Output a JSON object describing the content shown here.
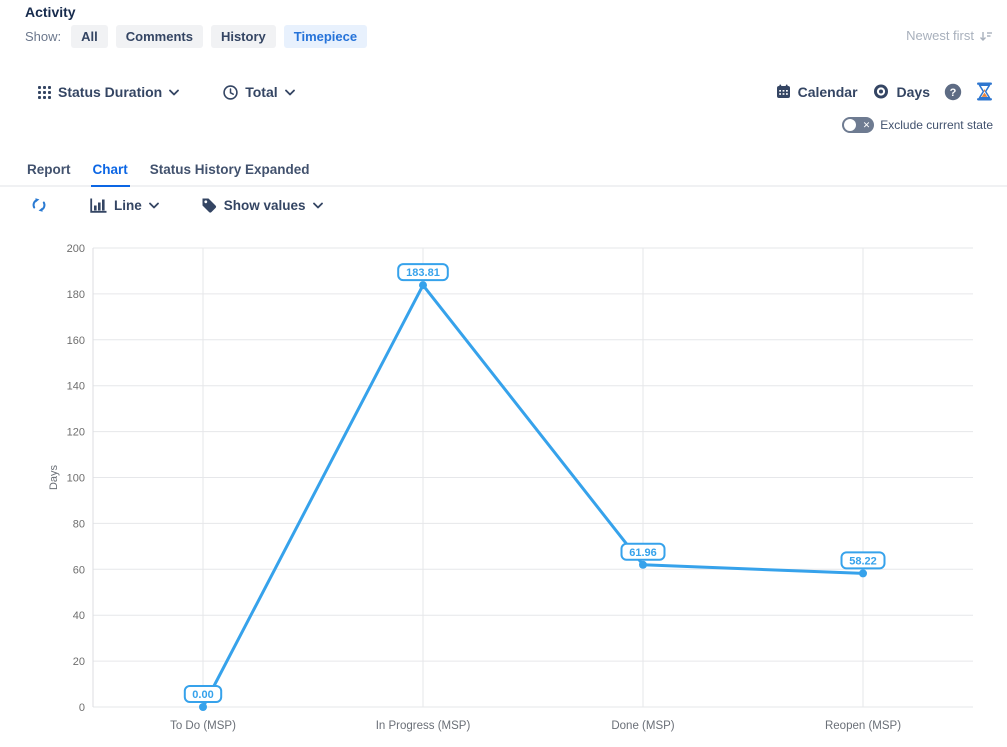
{
  "activity": {
    "title": "Activity",
    "show_label": "Show:",
    "filters": [
      {
        "label": "All",
        "active": false
      },
      {
        "label": "Comments",
        "active": false
      },
      {
        "label": "History",
        "active": false
      },
      {
        "label": "Timepiece",
        "active": true
      }
    ],
    "sort_label": "Newest first"
  },
  "toolbar": {
    "report_type_label": "Status Duration",
    "metric_label": "Total",
    "calendar_label": "Calendar",
    "unit_label": "Days",
    "exclude_toggle_label": "Exclude current state"
  },
  "tabs": [
    {
      "label": "Report",
      "active": false
    },
    {
      "label": "Chart",
      "active": true
    },
    {
      "label": "Status History Expanded",
      "active": false
    }
  ],
  "chart_controls": {
    "chart_type_label": "Line",
    "show_values_label": "Show values"
  },
  "chart_data": {
    "type": "line",
    "categories": [
      "To Do (MSP)",
      "In Progress (MSP)",
      "Done (MSP)",
      "Reopen (MSP)"
    ],
    "values": [
      0.0,
      183.81,
      61.96,
      58.22
    ],
    "value_labels": [
      "0.00",
      "183.81",
      "61.96",
      "58.22"
    ],
    "title": "",
    "xlabel": "",
    "ylabel": "Days",
    "ylim": [
      0,
      200
    ],
    "ytick_step": 20,
    "grid": true,
    "legend": "none",
    "line_color": "#36A2EB",
    "point_label_style": "rounded-outline-badge"
  },
  "colors": {
    "accent_blue": "#0C66E4",
    "chart_line": "#36A2EB",
    "navy_text": "#344563",
    "chip_active_bg": "#E8F1FD",
    "chip_active_text": "#2673D9"
  }
}
